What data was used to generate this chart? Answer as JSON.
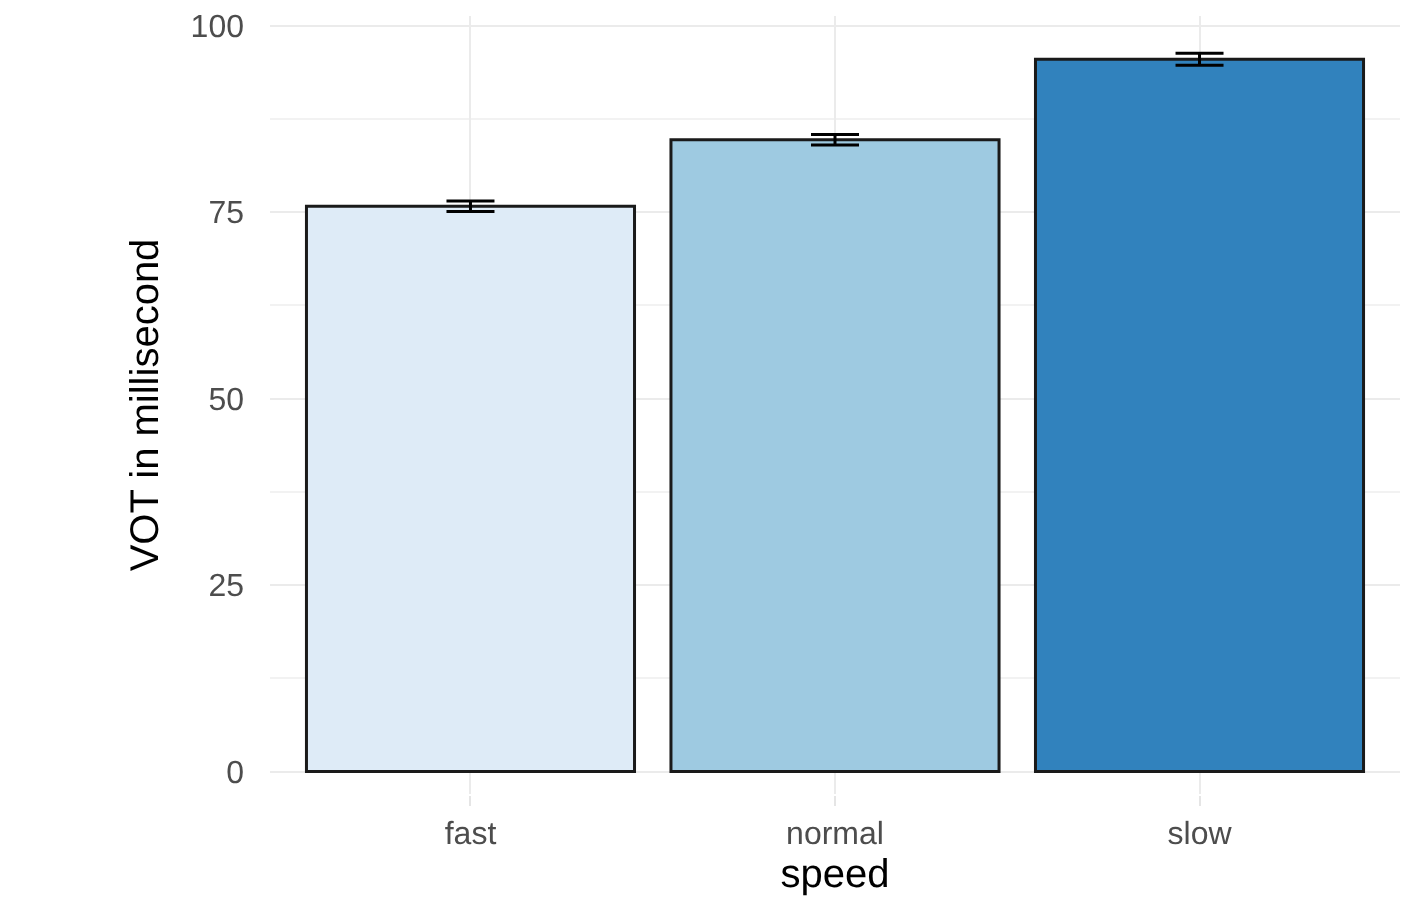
{
  "chart_data": {
    "type": "bar",
    "xlabel": "speed",
    "ylabel": "VOT in millisecond",
    "categories": [
      "fast",
      "normal",
      "slow"
    ],
    "values": [
      75.8,
      84.7,
      95.5
    ],
    "colors": [
      "#deebf7",
      "#9ecae1",
      "#3182bd"
    ],
    "errors": [
      0.7,
      0.7,
      0.8
    ],
    "ylim": [
      -3,
      101.3
    ],
    "yticks": [
      0,
      25,
      50,
      75,
      100
    ],
    "grid": true
  }
}
